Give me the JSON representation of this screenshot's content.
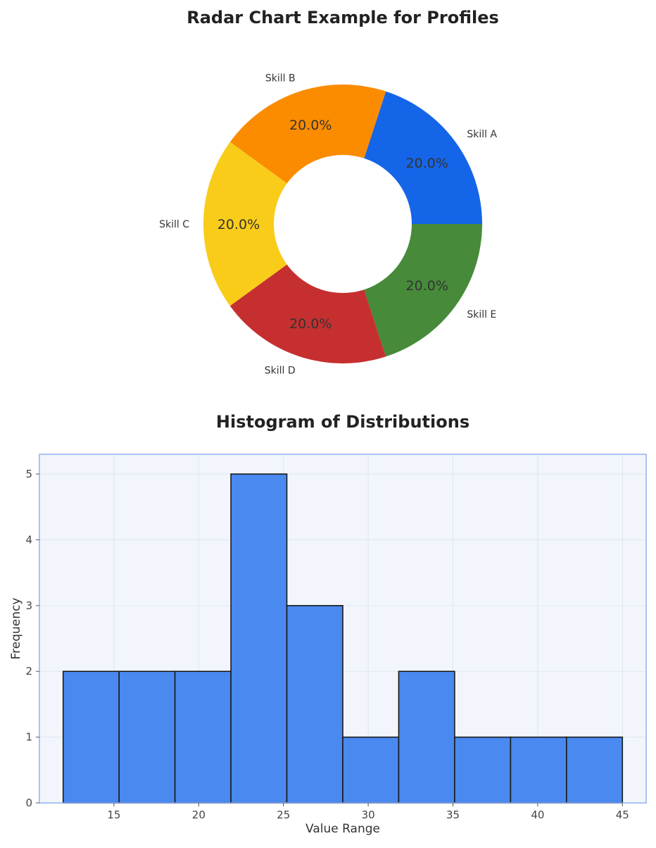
{
  "chart_data": [
    {
      "type": "pie",
      "title": "Radar Chart Example for Profiles",
      "donut": true,
      "categories": [
        "Skill A",
        "Skill B",
        "Skill C",
        "Skill D",
        "Skill E"
      ],
      "values": [
        20.0,
        20.0,
        20.0,
        20.0,
        20.0
      ],
      "percent_labels": [
        "20.0%",
        "20.0%",
        "20.0%",
        "20.0%",
        "20.0%"
      ],
      "colors": [
        "#1565e8",
        "#fb8c00",
        "#f9cc1a",
        "#c62f2f",
        "#468a3a"
      ]
    },
    {
      "type": "bar",
      "subtype": "histogram",
      "title": "Histogram of Distributions",
      "xlabel": "Value Range",
      "ylabel": "Frequency",
      "bin_edges": [
        12.0,
        15.3,
        18.6,
        21.9,
        25.2,
        28.5,
        31.8,
        35.1,
        38.4,
        41.7,
        45.0
      ],
      "values": [
        2,
        2,
        2,
        5,
        3,
        1,
        2,
        1,
        1,
        1
      ],
      "xlim": [
        10.6,
        46.4
      ],
      "ylim": [
        0,
        5.3
      ],
      "xticks": [
        15,
        20,
        25,
        30,
        35,
        40,
        45
      ],
      "yticks": [
        0,
        1,
        2,
        3,
        4,
        5
      ],
      "grid": true,
      "bar_color": "#4a89ef",
      "edge_color": "#1a1a1a",
      "background_color": "#f2f6fc",
      "frame_color": "#8fb2f0"
    }
  ]
}
